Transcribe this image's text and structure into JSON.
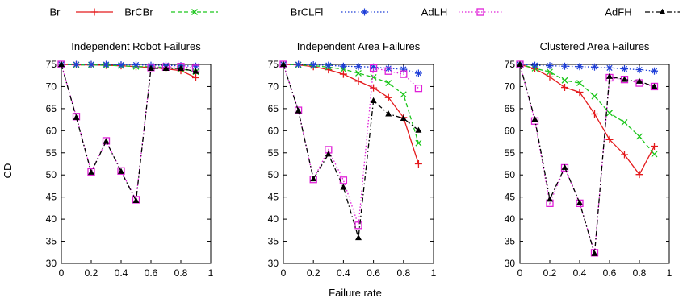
{
  "chart_data": [
    {
      "type": "line",
      "title": "Independent Robot Failures",
      "ylabel": "CD",
      "xlabel": "",
      "xlim": [
        0,
        1
      ],
      "ylim": [
        30,
        75
      ],
      "x_ticks": [
        "0",
        "0.2",
        "0.4",
        "0.6",
        "0.8",
        "1"
      ],
      "y_ticks": [
        "30",
        "35",
        "40",
        "45",
        "50",
        "55",
        "60",
        "65",
        "70",
        "75"
      ],
      "x": [
        0,
        0.1,
        0.2,
        0.3,
        0.4,
        0.5,
        0.6,
        0.7,
        0.8,
        0.9
      ],
      "series": [
        {
          "name": "Br",
          "values": [
            75,
            74.9,
            74.9,
            74.8,
            74.7,
            74.5,
            74.3,
            74.0,
            73.6,
            72.0
          ]
        },
        {
          "name": "BrCBr",
          "values": [
            75,
            74.9,
            74.9,
            74.8,
            74.7,
            74.5,
            74.5,
            74.3,
            74.0,
            73.3
          ]
        },
        {
          "name": "BrCLFl",
          "values": [
            75,
            75,
            75,
            75,
            74.9,
            74.9,
            74.8,
            74.8,
            74.7,
            74.6
          ]
        },
        {
          "name": "AdLH",
          "values": [
            75,
            63.2,
            50.7,
            57.7,
            50.9,
            44.4,
            74.3,
            74.4,
            74.5,
            74.1
          ]
        },
        {
          "name": "AdFH",
          "values": [
            75,
            63.0,
            50.6,
            57.6,
            50.8,
            44.2,
            74.1,
            74.1,
            74.1,
            73.4
          ]
        }
      ]
    },
    {
      "type": "line",
      "title": "Independent Area Failures",
      "ylabel": "",
      "xlabel": "Failure rate",
      "xlim": [
        0,
        1
      ],
      "ylim": [
        30,
        75
      ],
      "x_ticks": [
        "0",
        "0.2",
        "0.4",
        "0.6",
        "0.8",
        "1"
      ],
      "y_ticks": [
        "30",
        "35",
        "40",
        "45",
        "50",
        "55",
        "60",
        "65",
        "70",
        "75"
      ],
      "x": [
        0,
        0.1,
        0.2,
        0.3,
        0.4,
        0.5,
        0.6,
        0.7,
        0.8,
        0.9
      ],
      "series": [
        {
          "name": "Br",
          "values": [
            75,
            74.9,
            74.5,
            73.8,
            72.8,
            71.2,
            69.7,
            67.5,
            63.0,
            52.5
          ]
        },
        {
          "name": "BrCBr",
          "values": [
            75,
            74.9,
            74.7,
            74.4,
            73.9,
            73.0,
            72.1,
            70.8,
            68.2,
            57.2
          ]
        },
        {
          "name": "BrCLFl",
          "values": [
            75,
            75,
            74.9,
            74.8,
            74.6,
            74.5,
            74.4,
            74.1,
            73.9,
            73.0
          ]
        },
        {
          "name": "AdLH",
          "values": [
            75,
            64.6,
            49.0,
            55.7,
            48.8,
            38.6,
            74.2,
            73.5,
            72.8,
            69.6
          ]
        },
        {
          "name": "AdFH",
          "values": [
            75,
            64.5,
            49.1,
            54.7,
            47.2,
            35.8,
            66.8,
            63.8,
            62.8,
            60.1
          ]
        }
      ]
    },
    {
      "type": "line",
      "title": "Clustered Area Failures",
      "ylabel": "",
      "xlabel": "",
      "xlim": [
        0,
        1
      ],
      "ylim": [
        30,
        75
      ],
      "x_ticks": [
        "0",
        "0.2",
        "0.4",
        "0.6",
        "0.8",
        "1"
      ],
      "y_ticks": [
        "30",
        "35",
        "40",
        "45",
        "50",
        "55",
        "60",
        "65",
        "70",
        "75"
      ],
      "x": [
        0,
        0.1,
        0.2,
        0.3,
        0.4,
        0.5,
        0.6,
        0.7,
        0.8,
        0.9
      ],
      "series": [
        {
          "name": "Br",
          "values": [
            75,
            74.0,
            72.2,
            69.8,
            68.7,
            63.8,
            58.0,
            54.6,
            50.1,
            56.5
          ]
        },
        {
          "name": "BrCBr",
          "values": [
            75,
            74.1,
            73.3,
            71.4,
            70.8,
            67.8,
            64.0,
            61.9,
            58.7,
            54.7
          ]
        },
        {
          "name": "BrCLFl",
          "values": [
            75,
            74.8,
            74.7,
            74.6,
            74.5,
            74.4,
            74.2,
            74.0,
            73.8,
            73.5
          ]
        },
        {
          "name": "AdLH",
          "values": [
            75,
            62.2,
            43.6,
            51.6,
            43.6,
            32.4,
            72.0,
            71.6,
            70.8,
            70.0
          ]
        },
        {
          "name": "AdFH",
          "values": [
            75,
            62.6,
            44.5,
            51.7,
            43.7,
            32.2,
            72.3,
            71.6,
            71.2,
            70.0
          ]
        }
      ]
    }
  ],
  "legend": [
    {
      "name": "Br",
      "color": "#e41a1c",
      "dash": "solid",
      "marker": "plus"
    },
    {
      "name": "BrCBr",
      "color": "#1cc61c",
      "dash": "dashed",
      "marker": "x"
    },
    {
      "name": "BrCLFl",
      "color": "#1f3fd8",
      "dash": "dotted",
      "marker": "star"
    },
    {
      "name": "AdLH",
      "color": "#e020d8",
      "dash": "dotted",
      "marker": "square"
    },
    {
      "name": "AdFH",
      "color": "#000000",
      "dash": "dashdot",
      "marker": "triangle"
    }
  ],
  "legend_placement": "top, single row"
}
